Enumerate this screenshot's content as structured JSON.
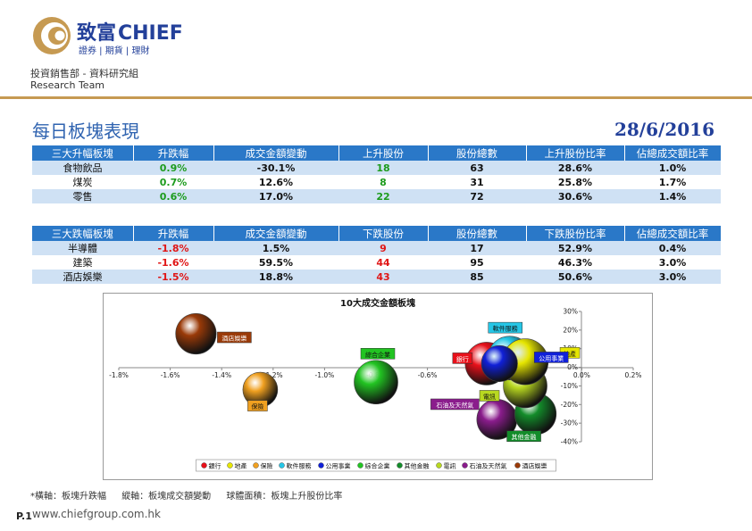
{
  "header": {
    "brand_cn": "致富",
    "brand_en": "CHIEF",
    "brand_sub": "證券 | 期貨 | 理財",
    "dept_cn": "投資銷售部 - 資料研究組",
    "dept_en": "Research Team",
    "title": "每日板塊表現",
    "date": "28/6/2016",
    "brand_color": "#c69a52",
    "accent_color": "#2a78c8"
  },
  "top_table": {
    "headers": [
      "三大升幅板塊",
      "升跌幅",
      "成交金額變動",
      "上升股份",
      "股份總數",
      "上升股份比率",
      "佔總成交額比率"
    ],
    "rows": [
      [
        "食物飲品",
        "0.9%",
        "-30.1%",
        "18",
        "63",
        "28.6%",
        "1.0%"
      ],
      [
        "煤炭",
        "0.7%",
        "12.6%",
        "8",
        "31",
        "25.8%",
        "1.7%"
      ],
      [
        "零售",
        "0.6%",
        "17.0%",
        "22",
        "72",
        "30.6%",
        "1.4%"
      ]
    ]
  },
  "bottom_table": {
    "headers": [
      "三大跌幅板塊",
      "升跌幅",
      "成交金額變動",
      "下跌股份",
      "股份總數",
      "下跌股份比率",
      "佔總成交額比率"
    ],
    "rows": [
      [
        "半導體",
        "-1.8%",
        "1.5%",
        "9",
        "17",
        "52.9%",
        "0.4%"
      ],
      [
        "建築",
        "-1.6%",
        "59.5%",
        "44",
        "95",
        "46.3%",
        "3.0%"
      ],
      [
        "酒店娛樂",
        "-1.5%",
        "18.8%",
        "43",
        "85",
        "50.6%",
        "3.0%"
      ]
    ]
  },
  "chart_data": {
    "type": "scatter",
    "title": "10大成交金額板塊",
    "xlim": [
      -1.8,
      0.2
    ],
    "ylim": [
      -40,
      30
    ],
    "x_ticks": [
      "-1.8%",
      "-1.6%",
      "-1.4%",
      "-1.2%",
      "-1.0%",
      "-0.8%",
      "-0.6%",
      "-0.4%",
      "-0.2%",
      "0.0%",
      "0.2%"
    ],
    "y_ticks": [
      "30%",
      "20%",
      "10%",
      "0%",
      "-10%",
      "-20%",
      "-30%",
      "-40%"
    ],
    "grid": false,
    "legend_position": "bottom",
    "series": [
      {
        "name": "銀行",
        "x": -0.37,
        "y": 2,
        "size": 0.48,
        "color": "#e8101a"
      },
      {
        "name": "地產",
        "x": -0.22,
        "y": 3,
        "size": 0.55,
        "color": "#e6e600"
      },
      {
        "name": "保險",
        "x": -1.25,
        "y": -12,
        "size": 0.3,
        "color": "#f0a020"
      },
      {
        "name": "軟件服務",
        "x": -0.28,
        "y": 5,
        "size": 0.5,
        "color": "#25c6e6"
      },
      {
        "name": "公用事業",
        "x": -0.32,
        "y": 2,
        "size": 0.33,
        "color": "#1020d8"
      },
      {
        "name": "綜合企業",
        "x": -0.8,
        "y": -8,
        "size": 0.5,
        "color": "#22c422"
      },
      {
        "name": "其他金融",
        "x": -0.18,
        "y": -25,
        "size": 0.45,
        "color": "#138c2a"
      },
      {
        "name": "電訊",
        "x": -0.22,
        "y": -10,
        "size": 0.5,
        "color": "#b8d820"
      },
      {
        "name": "石油及天然氣",
        "x": -0.33,
        "y": -28,
        "size": 0.42,
        "color": "#8a1c8c"
      },
      {
        "name": "酒店娛樂",
        "x": -1.5,
        "y": 18,
        "size": 0.43,
        "color": "#9a3a08"
      }
    ]
  },
  "footnote": {
    "x_axis": "*橫軸：板塊升跌幅",
    "y_axis": "縱軸：板塊成交額變動",
    "bubble": "球體面積：板塊上升股份比率"
  },
  "footer": {
    "page": "P.1",
    "website": "www.chiefgroup.com.hk"
  }
}
